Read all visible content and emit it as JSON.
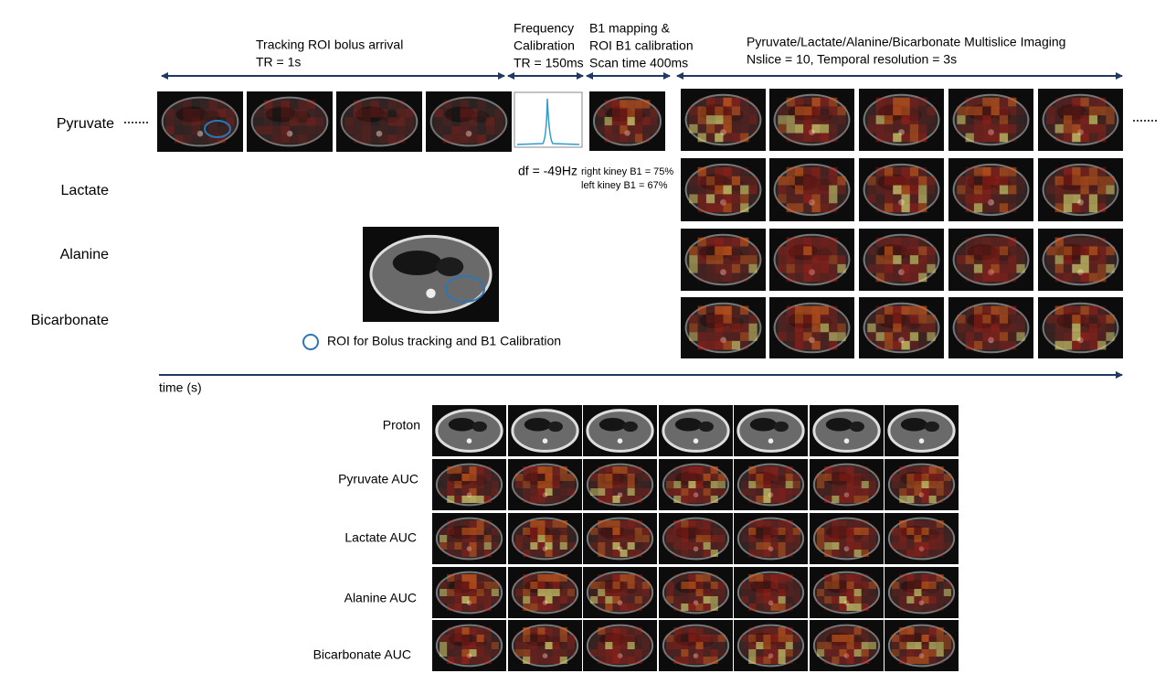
{
  "phases": [
    {
      "lines": [
        "Tracking ROI bolus arrival",
        "TR = 1s"
      ]
    },
    {
      "lines": [
        "Frequency",
        "Calibration",
        "TR = 150ms"
      ]
    },
    {
      "lines": [
        "B1 mapping &",
        "ROI B1 calibration",
        "Scan time 400ms"
      ]
    },
    {
      "lines": [
        "Pyruvate/Lactate/Alanine/Bicarbonate Multislice Imaging",
        "Nslice = 10, Temporal resolution = 3s"
      ]
    }
  ],
  "metabolites": [
    "Pyruvate",
    "Lactate",
    "Alanine",
    "Bicarbonate"
  ],
  "frequency_note": "df = -49Hz",
  "b1_notes": [
    "right kiney B1 = 75%",
    "left kiney B1 = 67%"
  ],
  "roi_legend": "ROI for Bolus tracking and B1 Calibration",
  "time_axis": "time (s)",
  "auc_rows": [
    "Proton",
    "Pyruvate AUC",
    "Lactate AUC",
    "Alanine AUC",
    "Bicarbonate AUC"
  ]
}
